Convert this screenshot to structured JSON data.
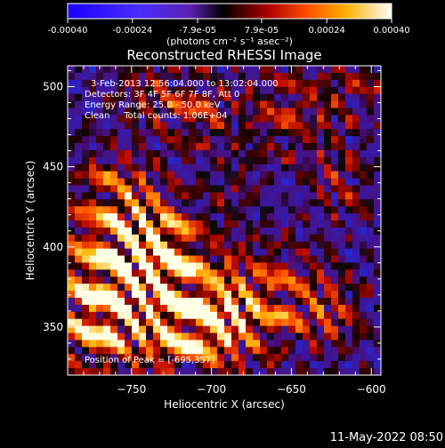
{
  "chart_data": {
    "type": "heatmap",
    "title": "Reconstructed RHESSI Image",
    "xlabel": "Heliocentric X (arcsec)",
    "ylabel": "Heliocentric Y (arcsec)",
    "xlim": [
      -790,
      -594
    ],
    "ylim": [
      320,
      513
    ],
    "x_ticks": [
      -750,
      -700,
      -650,
      -600
    ],
    "y_ticks": [
      350,
      400,
      450,
      500
    ],
    "colorbar": {
      "ticks": [
        -0.0004,
        -0.00024,
        -7.9e-05,
        7.9e-05,
        0.00024,
        0.0004
      ],
      "tick_labels": [
        "-0.00040",
        "-0.00024",
        "-7.9e-05",
        "7.9e-05",
        "0.00024",
        "0.00040"
      ],
      "range": [
        -0.0004,
        0.0004
      ],
      "unit_label": "(photons cm⁻² s⁻¹ asec⁻²)"
    },
    "info_lines": [
      "3-Feb-2013 12:56:04.000 to 13:02:04.000",
      "Detectors: 3F 4F 5F 6F 7F 8F, Att 0",
      "Energy Range: 25.0 - 50.0 keV",
      "Clean     Total counts: 1.06E+04"
    ],
    "peak_label": "Position of Peak = [-695,357]",
    "peak_position": [
      -695,
      357
    ],
    "peak_value": 0.0004,
    "grid": false
  },
  "footer": {
    "date": "11-May-2022 08:50"
  }
}
